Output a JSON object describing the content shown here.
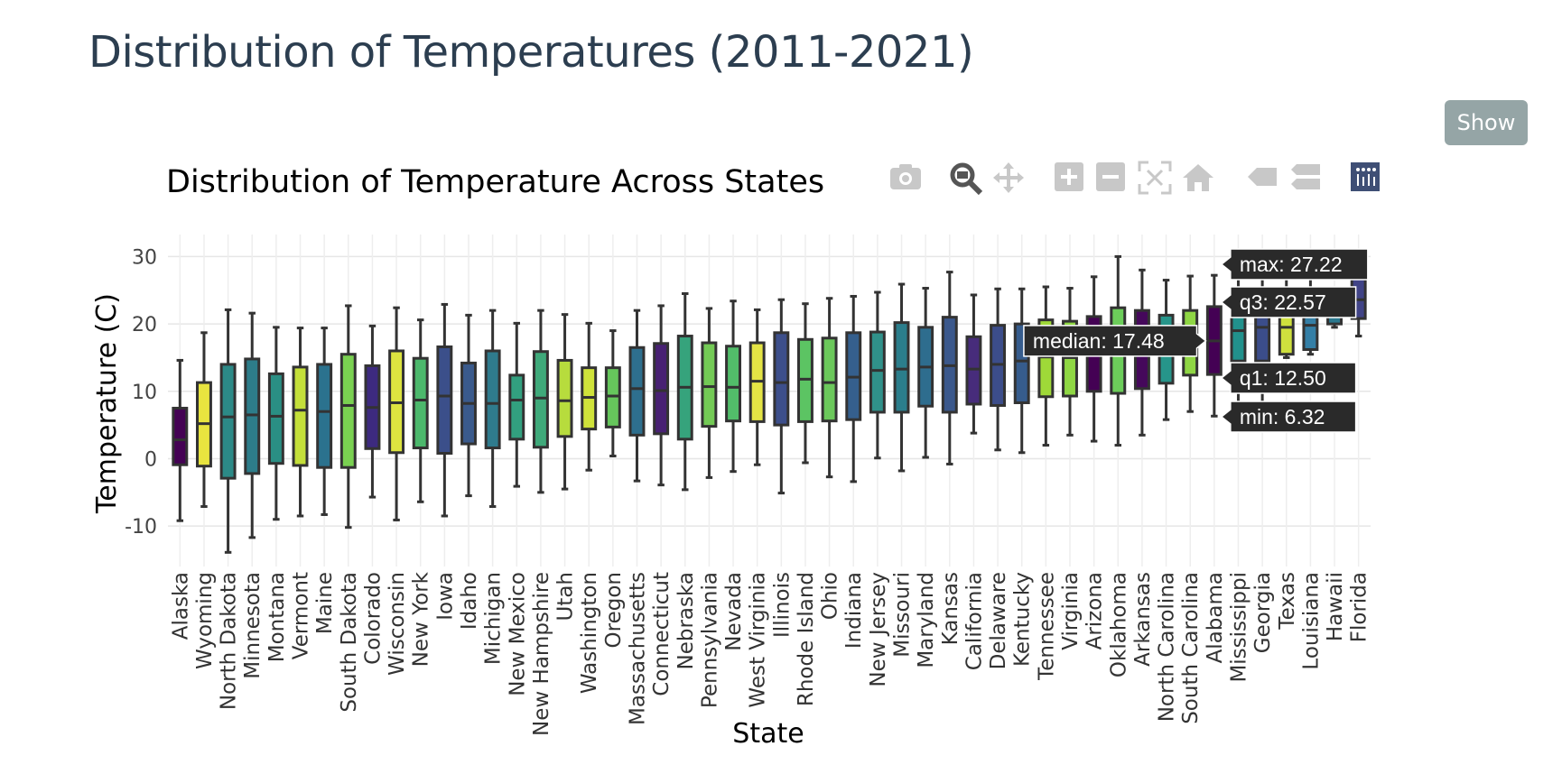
{
  "page": {
    "title": "Distribution of Temperatures (2011-2021)",
    "show_button": "Show"
  },
  "modebar": {
    "icons": [
      "camera-icon",
      "zoom-icon",
      "pan-icon",
      "zoom-in-icon",
      "zoom-out-icon",
      "autoscale-icon",
      "reset-axes-icon",
      "hover-closest-icon",
      "hover-compare-icon",
      "plotly-logo-icon"
    ]
  },
  "chart_data": {
    "type": "box",
    "title": "Distribution of Temperature Across States",
    "xlabel": "State",
    "ylabel": "Temperature (C)",
    "ylim": [
      -16,
      33
    ],
    "yticks": [
      -10,
      0,
      10,
      20,
      30
    ],
    "grid": true,
    "states": [
      {
        "name": "Alaska",
        "min": -9.2,
        "q1": -0.9,
        "median": 2.8,
        "q3": 7.5,
        "max": 14.6,
        "color": "#440154"
      },
      {
        "name": "Wyoming",
        "min": -7.1,
        "q1": -1.1,
        "median": 5.2,
        "q3": 11.3,
        "max": 18.7,
        "color": "#e8e43f"
      },
      {
        "name": "North Dakota",
        "min": -13.9,
        "q1": -2.9,
        "median": 6.2,
        "q3": 14.0,
        "max": 22.1,
        "color": "#2c8a87"
      },
      {
        "name": "Minnesota",
        "min": -11.7,
        "q1": -2.2,
        "median": 6.5,
        "q3": 14.8,
        "max": 21.6,
        "color": "#2d7d8a"
      },
      {
        "name": "Montana",
        "min": -9.0,
        "q1": -0.7,
        "median": 6.3,
        "q3": 12.6,
        "max": 19.5,
        "color": "#2a8f84"
      },
      {
        "name": "Vermont",
        "min": -8.5,
        "q1": -1.0,
        "median": 7.2,
        "q3": 13.6,
        "max": 19.4,
        "color": "#c4df3a"
      },
      {
        "name": "Maine",
        "min": -8.3,
        "q1": -1.3,
        "median": 7.0,
        "q3": 14.0,
        "max": 19.4,
        "color": "#2b728e"
      },
      {
        "name": "South Dakota",
        "min": -10.2,
        "q1": -1.3,
        "median": 7.9,
        "q3": 15.5,
        "max": 22.7,
        "color": "#7ad151"
      },
      {
        "name": "Colorado",
        "min": -5.7,
        "q1": 1.5,
        "median": 7.6,
        "q3": 13.8,
        "max": 19.7,
        "color": "#3d2a7f"
      },
      {
        "name": "Wisconsin",
        "min": -9.1,
        "q1": 0.9,
        "median": 8.3,
        "q3": 16.0,
        "max": 22.4,
        "color": "#dde440"
      },
      {
        "name": "New York",
        "min": -6.4,
        "q1": 1.6,
        "median": 8.7,
        "q3": 14.9,
        "max": 20.6,
        "color": "#4cb86c"
      },
      {
        "name": "Iowa",
        "min": -8.5,
        "q1": 0.8,
        "median": 9.3,
        "q3": 16.6,
        "max": 22.9,
        "color": "#3b4f8a"
      },
      {
        "name": "Idaho",
        "min": -5.5,
        "q1": 2.2,
        "median": 8.2,
        "q3": 14.2,
        "max": 21.3,
        "color": "#3a5a8c"
      },
      {
        "name": "Michigan",
        "min": -7.1,
        "q1": 1.6,
        "median": 8.2,
        "q3": 16.0,
        "max": 22.0,
        "color": "#2f7b8d"
      },
      {
        "name": "New Mexico",
        "min": -4.1,
        "q1": 2.9,
        "median": 8.7,
        "q3": 12.4,
        "max": 20.1,
        "color": "#32a07f"
      },
      {
        "name": "New Hampshire",
        "min": -5.0,
        "q1": 1.7,
        "median": 9.0,
        "q3": 15.9,
        "max": 22.0,
        "color": "#3fa97a"
      },
      {
        "name": "Utah",
        "min": -4.5,
        "q1": 3.3,
        "median": 8.6,
        "q3": 14.6,
        "max": 21.4,
        "color": "#b7dc3d"
      },
      {
        "name": "Washington",
        "min": -1.7,
        "q1": 4.4,
        "median": 9.1,
        "q3": 13.5,
        "max": 20.1,
        "color": "#cfe23a"
      },
      {
        "name": "Oregon",
        "min": 0.4,
        "q1": 4.7,
        "median": 9.3,
        "q3": 13.5,
        "max": 19.0,
        "color": "#66c65c"
      },
      {
        "name": "Massachusetts",
        "min": -3.3,
        "q1": 3.5,
        "median": 10.4,
        "q3": 16.5,
        "max": 22.0,
        "color": "#2e6f8e"
      },
      {
        "name": "Connecticut",
        "min": -3.9,
        "q1": 3.7,
        "median": 10.1,
        "q3": 17.1,
        "max": 22.7,
        "color": "#482173"
      },
      {
        "name": "Nebraska",
        "min": -4.6,
        "q1": 2.9,
        "median": 10.6,
        "q3": 18.2,
        "max": 24.5,
        "color": "#36a37c"
      },
      {
        "name": "Pennsylvania",
        "min": -2.8,
        "q1": 4.8,
        "median": 10.7,
        "q3": 17.2,
        "max": 22.3,
        "color": "#73ca55"
      },
      {
        "name": "Nevada",
        "min": -1.9,
        "q1": 5.6,
        "median": 10.6,
        "q3": 16.7,
        "max": 23.4,
        "color": "#52bd6a"
      },
      {
        "name": "West Virginia",
        "min": -0.9,
        "q1": 5.5,
        "median": 11.5,
        "q3": 17.2,
        "max": 22.1,
        "color": "#e4e445"
      },
      {
        "name": "Illinois",
        "min": -5.1,
        "q1": 5.0,
        "median": 11.3,
        "q3": 18.7,
        "max": 23.6,
        "color": "#3d4f8b"
      },
      {
        "name": "Rhode Island",
        "min": -0.6,
        "q1": 5.5,
        "median": 11.8,
        "q3": 17.7,
        "max": 23.0,
        "color": "#5cc463"
      },
      {
        "name": "Ohio",
        "min": -2.7,
        "q1": 5.6,
        "median": 11.3,
        "q3": 17.9,
        "max": 23.8,
        "color": "#6bc85b"
      },
      {
        "name": "Indiana",
        "min": -3.4,
        "q1": 5.8,
        "median": 12.1,
        "q3": 18.7,
        "max": 24.1,
        "color": "#355f8d"
      },
      {
        "name": "New Jersey",
        "min": 0.1,
        "q1": 6.9,
        "median": 13.1,
        "q3": 18.8,
        "max": 24.7,
        "color": "#30918a"
      },
      {
        "name": "Missouri",
        "min": -1.8,
        "q1": 6.9,
        "median": 13.3,
        "q3": 20.2,
        "max": 25.9,
        "color": "#2b7e8c"
      },
      {
        "name": "Maryland",
        "min": 0.2,
        "q1": 7.8,
        "median": 13.6,
        "q3": 19.5,
        "max": 25.3,
        "color": "#2e6d8e"
      },
      {
        "name": "Kansas",
        "min": -0.8,
        "q1": 6.9,
        "median": 13.8,
        "q3": 21.0,
        "max": 27.7,
        "color": "#3b588c"
      },
      {
        "name": "California",
        "min": 3.8,
        "q1": 8.1,
        "median": 13.3,
        "q3": 18.1,
        "max": 24.3,
        "color": "#472c7b"
      },
      {
        "name": "Delaware",
        "min": 1.3,
        "q1": 7.9,
        "median": 14.0,
        "q3": 19.8,
        "max": 25.2,
        "color": "#3c4d8a"
      },
      {
        "name": "Kentucky",
        "min": 0.9,
        "q1": 8.3,
        "median": 14.5,
        "q3": 20.0,
        "max": 25.2,
        "color": "#365c8d"
      },
      {
        "name": "Tennessee",
        "min": 2.0,
        "q1": 9.2,
        "median": 15.1,
        "q3": 20.6,
        "max": 25.5,
        "color": "#9fd938"
      },
      {
        "name": "Virginia",
        "min": 3.5,
        "q1": 9.3,
        "median": 15.0,
        "q3": 20.4,
        "max": 25.3,
        "color": "#8fd744"
      },
      {
        "name": "Arizona",
        "min": 2.6,
        "q1": 10.0,
        "median": 16.3,
        "q3": 21.1,
        "max": 27.0,
        "color": "#440154"
      },
      {
        "name": "Oklahoma",
        "min": 2.0,
        "q1": 9.7,
        "median": 16.2,
        "q3": 22.4,
        "max": 30.0,
        "color": "#6ccd5a"
      },
      {
        "name": "Arkansas",
        "min": 3.5,
        "q1": 10.4,
        "median": 16.6,
        "q3": 22.0,
        "max": 28.0,
        "color": "#45085b"
      },
      {
        "name": "North Carolina",
        "min": 5.8,
        "q1": 11.2,
        "median": 16.3,
        "q3": 21.3,
        "max": 26.5,
        "color": "#26958a"
      },
      {
        "name": "South Carolina",
        "min": 7.0,
        "q1": 12.4,
        "median": 17.4,
        "q3": 22.0,
        "max": 27.1,
        "color": "#8fd644"
      },
      {
        "name": "Alabama",
        "min": 6.32,
        "q1": 12.5,
        "median": 17.48,
        "q3": 22.57,
        "max": 27.22,
        "color": "#440154"
      },
      {
        "name": "Mississippi",
        "min": 7.5,
        "q1": 14.5,
        "median": 19.0,
        "q3": 22.7,
        "max": 27.0,
        "color": "#21918c"
      },
      {
        "name": "Georgia",
        "min": 7.5,
        "q1": 14.5,
        "median": 19.5,
        "q3": 22.7,
        "max": 27.0,
        "color": "#3b4d8a"
      },
      {
        "name": "Texas",
        "min": 15.0,
        "q1": 15.5,
        "median": 19.5,
        "q3": 23.0,
        "max": 27.5,
        "color": "#cfe03e"
      },
      {
        "name": "Louisiana",
        "min": 15.5,
        "q1": 16.2,
        "median": 19.8,
        "q3": 23.0,
        "max": 27.5,
        "color": "#347fa6"
      },
      {
        "name": "Hawaii",
        "min": 19.5,
        "q1": 20.0,
        "median": 22.0,
        "q3": 23.0,
        "max": 24.0,
        "color": "#2a788e"
      },
      {
        "name": "Florida",
        "min": 18.2,
        "q1": 20.8,
        "median": 23.6,
        "q3": 27.4,
        "max": 29.0,
        "color": "#414487"
      }
    ],
    "hover": {
      "state": "Alabama",
      "labels": {
        "max": "max: 27.22",
        "q3": "q3: 22.57",
        "median": "median: 17.48",
        "q1": "q1: 12.50",
        "min": "min: 6.32"
      }
    }
  }
}
